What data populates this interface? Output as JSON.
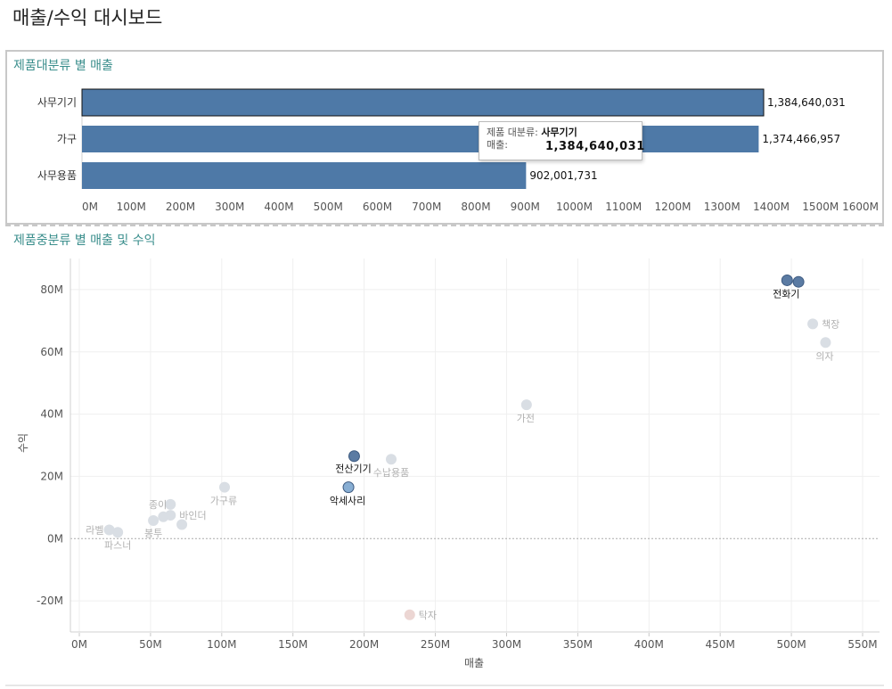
{
  "dashboard": {
    "title": "매출/수익 대시보드"
  },
  "bar_panel": {
    "title": "제품대분류 별 매출"
  },
  "scatter_panel": {
    "title": "제품중분류 별 매출 및 수익"
  },
  "tooltip": {
    "category_key": "제품 대분류:",
    "category_value": "사무기기",
    "sales_key": "매출:",
    "sales_value": "1,384,640,031"
  },
  "colors": {
    "bar": "#4e79a7",
    "accent_title": "#3a8e8c",
    "highlight_dot": "#5b7ba3",
    "faded_dot": "#d9dee4",
    "faded_neg_dot": "#ecd6d3"
  },
  "chart_data": [
    {
      "type": "bar",
      "orientation": "horizontal",
      "title": "제품대분류 별 매출",
      "categories": [
        "사무기기",
        "가구",
        "사무용품"
      ],
      "values": [
        1384640031,
        1374466957,
        902001731
      ],
      "value_labels": [
        "1,384,640,031",
        "1,374,466,957",
        "902,001,731"
      ],
      "xlim": [
        0,
        1600000000
      ],
      "xticks": [
        "0M",
        "100M",
        "200M",
        "300M",
        "400M",
        "500M",
        "600M",
        "700M",
        "800M",
        "900M",
        "1000M",
        "1100M",
        "1200M",
        "1300M",
        "1400M",
        "1500M",
        "1600M"
      ],
      "selected": "사무기기"
    },
    {
      "type": "scatter",
      "title": "제품중분류 별 매출 및 수익",
      "xlabel": "매출",
      "ylabel": "수익",
      "xlim": [
        0,
        550000000
      ],
      "ylim": [
        -30000000,
        90000000
      ],
      "xticks": [
        "0M",
        "50M",
        "100M",
        "150M",
        "200M",
        "250M",
        "300M",
        "350M",
        "400M",
        "450M",
        "500M",
        "550M"
      ],
      "yticks": [
        "-20M",
        "0M",
        "20M",
        "40M",
        "60M",
        "80M"
      ],
      "grid": true,
      "points": [
        {
          "label": "전화기",
          "x": 497000000,
          "y": 83000000,
          "highlight": true
        },
        {
          "label": "",
          "x": 505000000,
          "y": 82500000,
          "highlight": true
        },
        {
          "label": "책장",
          "x": 515000000,
          "y": 69000000,
          "highlight": false
        },
        {
          "label": "의자",
          "x": 524000000,
          "y": 63000000,
          "highlight": false
        },
        {
          "label": "가전",
          "x": 314000000,
          "y": 43000000,
          "highlight": false
        },
        {
          "label": "전산기기",
          "x": 193000000,
          "y": 26500000,
          "highlight": true
        },
        {
          "label": "수납용품",
          "x": 219000000,
          "y": 25500000,
          "highlight": false
        },
        {
          "label": "악세사리",
          "x": 189000000,
          "y": 16500000,
          "highlight": true,
          "light": true
        },
        {
          "label": "가구류",
          "x": 102000000,
          "y": 16500000,
          "highlight": false
        },
        {
          "label": "종이",
          "x": 64000000,
          "y": 11000000,
          "highlight": false
        },
        {
          "label": "바인더",
          "x": 64000000,
          "y": 7500000,
          "highlight": false
        },
        {
          "label": "",
          "x": 59000000,
          "y": 7000000,
          "highlight": false
        },
        {
          "label": "봉투",
          "x": 52000000,
          "y": 5800000,
          "highlight": false
        },
        {
          "label": "",
          "x": 72000000,
          "y": 4500000,
          "highlight": false
        },
        {
          "label": "라벨",
          "x": 21000000,
          "y": 2800000,
          "highlight": false
        },
        {
          "label": "파스너",
          "x": 27000000,
          "y": 2000000,
          "highlight": false
        },
        {
          "label": "탁자",
          "x": 232000000,
          "y": -24500000,
          "highlight": false,
          "negative": true
        }
      ]
    }
  ]
}
